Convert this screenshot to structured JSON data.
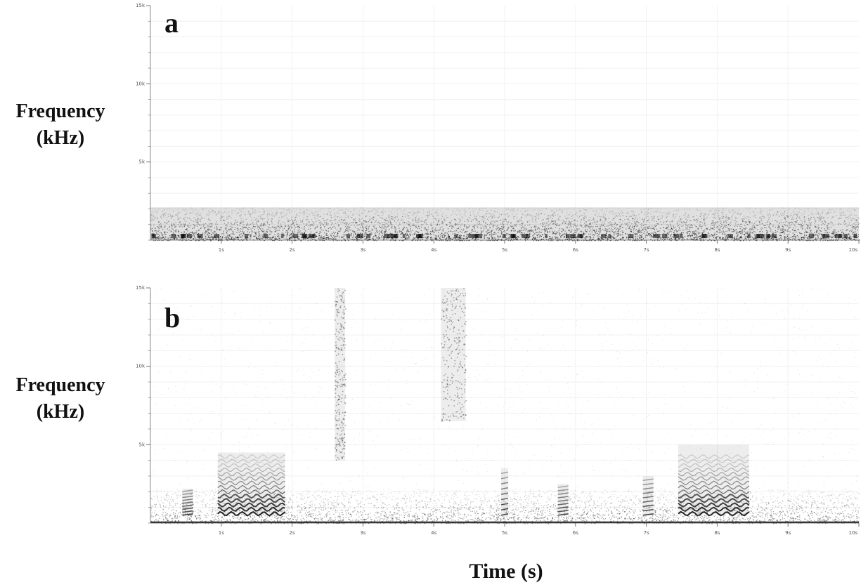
{
  "chart_data": [
    {
      "type": "heatmap",
      "panel_label": "a",
      "ylabel": "Frequency (kHz)",
      "ylabel_lines": [
        "Frequency",
        "(kHz)"
      ],
      "xlabel": "",
      "x_ticks": [
        "1s",
        "2s",
        "3s",
        "4s",
        "5s",
        "6s",
        "7s",
        "8s",
        "9s",
        "10s"
      ],
      "y_ticks": [
        "5k",
        "10k",
        "15k"
      ],
      "xlim": [
        0,
        10
      ],
      "ylim": [
        0,
        15
      ],
      "x_unit": "s",
      "y_unit": "kHz",
      "colormap": "grayscale (darker = higher energy)",
      "energy_bands": [
        {
          "label": "broadband low-frequency noise",
          "t_start": 0,
          "t_end": 10,
          "f_low": 0,
          "f_high": 2.1,
          "level": 0.45
        }
      ]
    },
    {
      "type": "heatmap",
      "panel_label": "b",
      "ylabel": "Frequency (kHz)",
      "ylabel_lines": [
        "Frequency",
        "(kHz)"
      ],
      "xlabel": "Time (s)",
      "x_ticks": [
        "1s",
        "2s",
        "3s",
        "4s",
        "5s",
        "6s",
        "7s",
        "8s",
        "9s",
        "10s"
      ],
      "y_ticks": [
        "5k",
        "10k",
        "15k"
      ],
      "xlim": [
        0,
        10
      ],
      "ylim": [
        0,
        15
      ],
      "x_unit": "s",
      "y_unit": "kHz",
      "colormap": "grayscale (darker = higher energy)",
      "events": [
        {
          "t_start": 0.45,
          "t_end": 0.6,
          "f_low": 0.5,
          "f_high": 2.2,
          "kind": "short call"
        },
        {
          "t_start": 0.95,
          "t_end": 1.9,
          "f_low": 0.6,
          "f_high": 4.5,
          "kind": "harmonic call"
        },
        {
          "t_start": 2.6,
          "t_end": 2.75,
          "f_low": 4,
          "f_high": 15,
          "kind": "broadband click"
        },
        {
          "t_start": 4.1,
          "t_end": 4.45,
          "f_low": 6.5,
          "f_high": 15,
          "kind": "broadband noise"
        },
        {
          "t_start": 4.95,
          "t_end": 5.05,
          "f_low": 0.5,
          "f_high": 3.5,
          "kind": "short call"
        },
        {
          "t_start": 5.75,
          "t_end": 5.9,
          "f_low": 0.5,
          "f_high": 2.5,
          "kind": "short call"
        },
        {
          "t_start": 6.95,
          "t_end": 7.1,
          "f_low": 0.5,
          "f_high": 3,
          "kind": "short call"
        },
        {
          "t_start": 7.45,
          "t_end": 8.45,
          "f_low": 0.6,
          "f_high": 5,
          "kind": "harmonic call"
        }
      ]
    }
  ]
}
